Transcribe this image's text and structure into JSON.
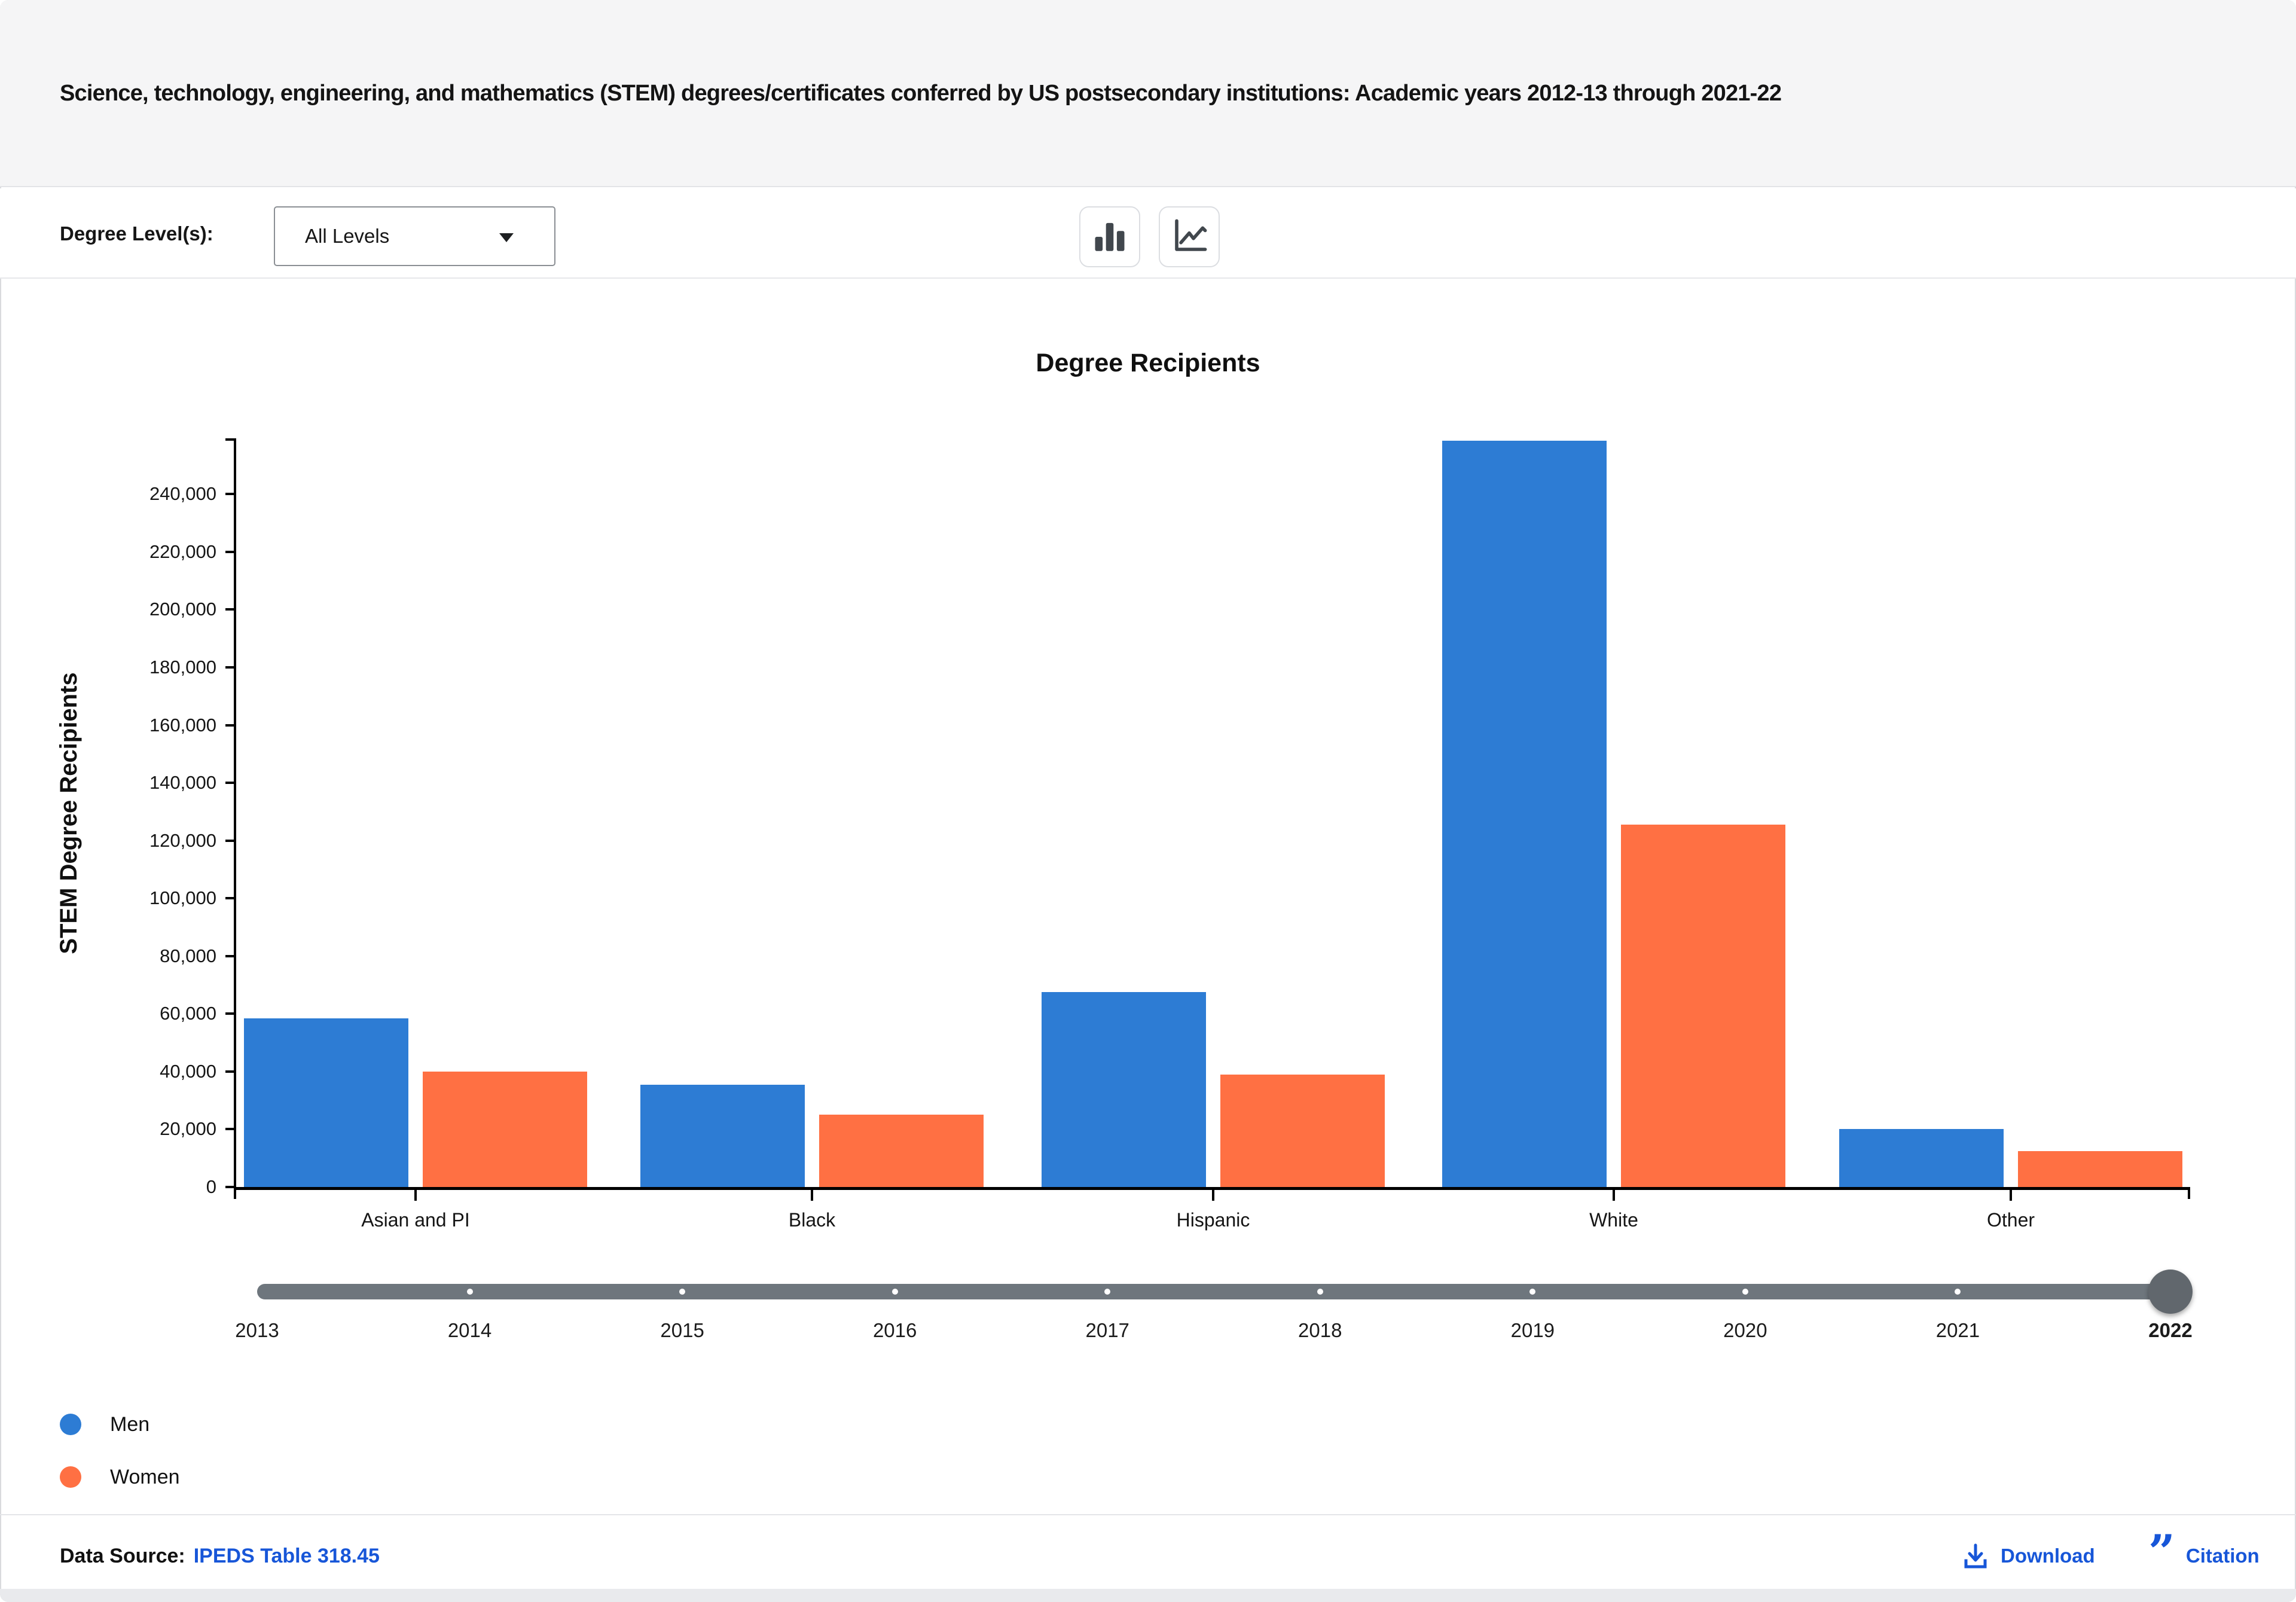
{
  "header": {
    "title": "Science, technology, engineering, and mathematics (STEM) degrees/certificates conferred by US postsecondary institutions: Academic years 2012-13 through 2021-22"
  },
  "controls": {
    "degree_level_label": "Degree Level(s):",
    "degree_level_value": "All Levels",
    "chart_type_buttons": [
      "bar-chart",
      "line-chart"
    ]
  },
  "chart_data": {
    "type": "bar",
    "title": "Degree Recipients",
    "ylabel": "STEM Degree Recipients",
    "xlabel": "",
    "categories": [
      "Asian and PI",
      "Black",
      "Hispanic",
      "White",
      "Other"
    ],
    "series": [
      {
        "name": "Men",
        "color": "#2d7cd4",
        "values": [
          58500,
          35500,
          67500,
          258500,
          20000
        ]
      },
      {
        "name": "Women",
        "color": "#ff7043",
        "values": [
          40000,
          25000,
          39000,
          125500,
          12500
        ]
      }
    ],
    "ylim": [
      0,
      258900
    ],
    "yticks": [
      0,
      20000,
      40000,
      60000,
      80000,
      100000,
      120000,
      140000,
      160000,
      180000,
      200000,
      220000,
      240000
    ],
    "grid": false,
    "legend_position": "bottom-left"
  },
  "slider": {
    "years": [
      "2013",
      "2014",
      "2015",
      "2016",
      "2017",
      "2018",
      "2019",
      "2020",
      "2021",
      "2022"
    ],
    "selected_year": "2022"
  },
  "footer": {
    "data_source_label": "Data Source:",
    "data_source_link": "IPEDS Table 318.45",
    "download_label": "Download",
    "citation_label": "Citation"
  },
  "theme": {
    "men_color": "#2d7cd4",
    "women_color": "#ff7043",
    "link_color": "#1756d8",
    "slider_color": "#6e767d",
    "header_bg": "#f5f5f6"
  }
}
